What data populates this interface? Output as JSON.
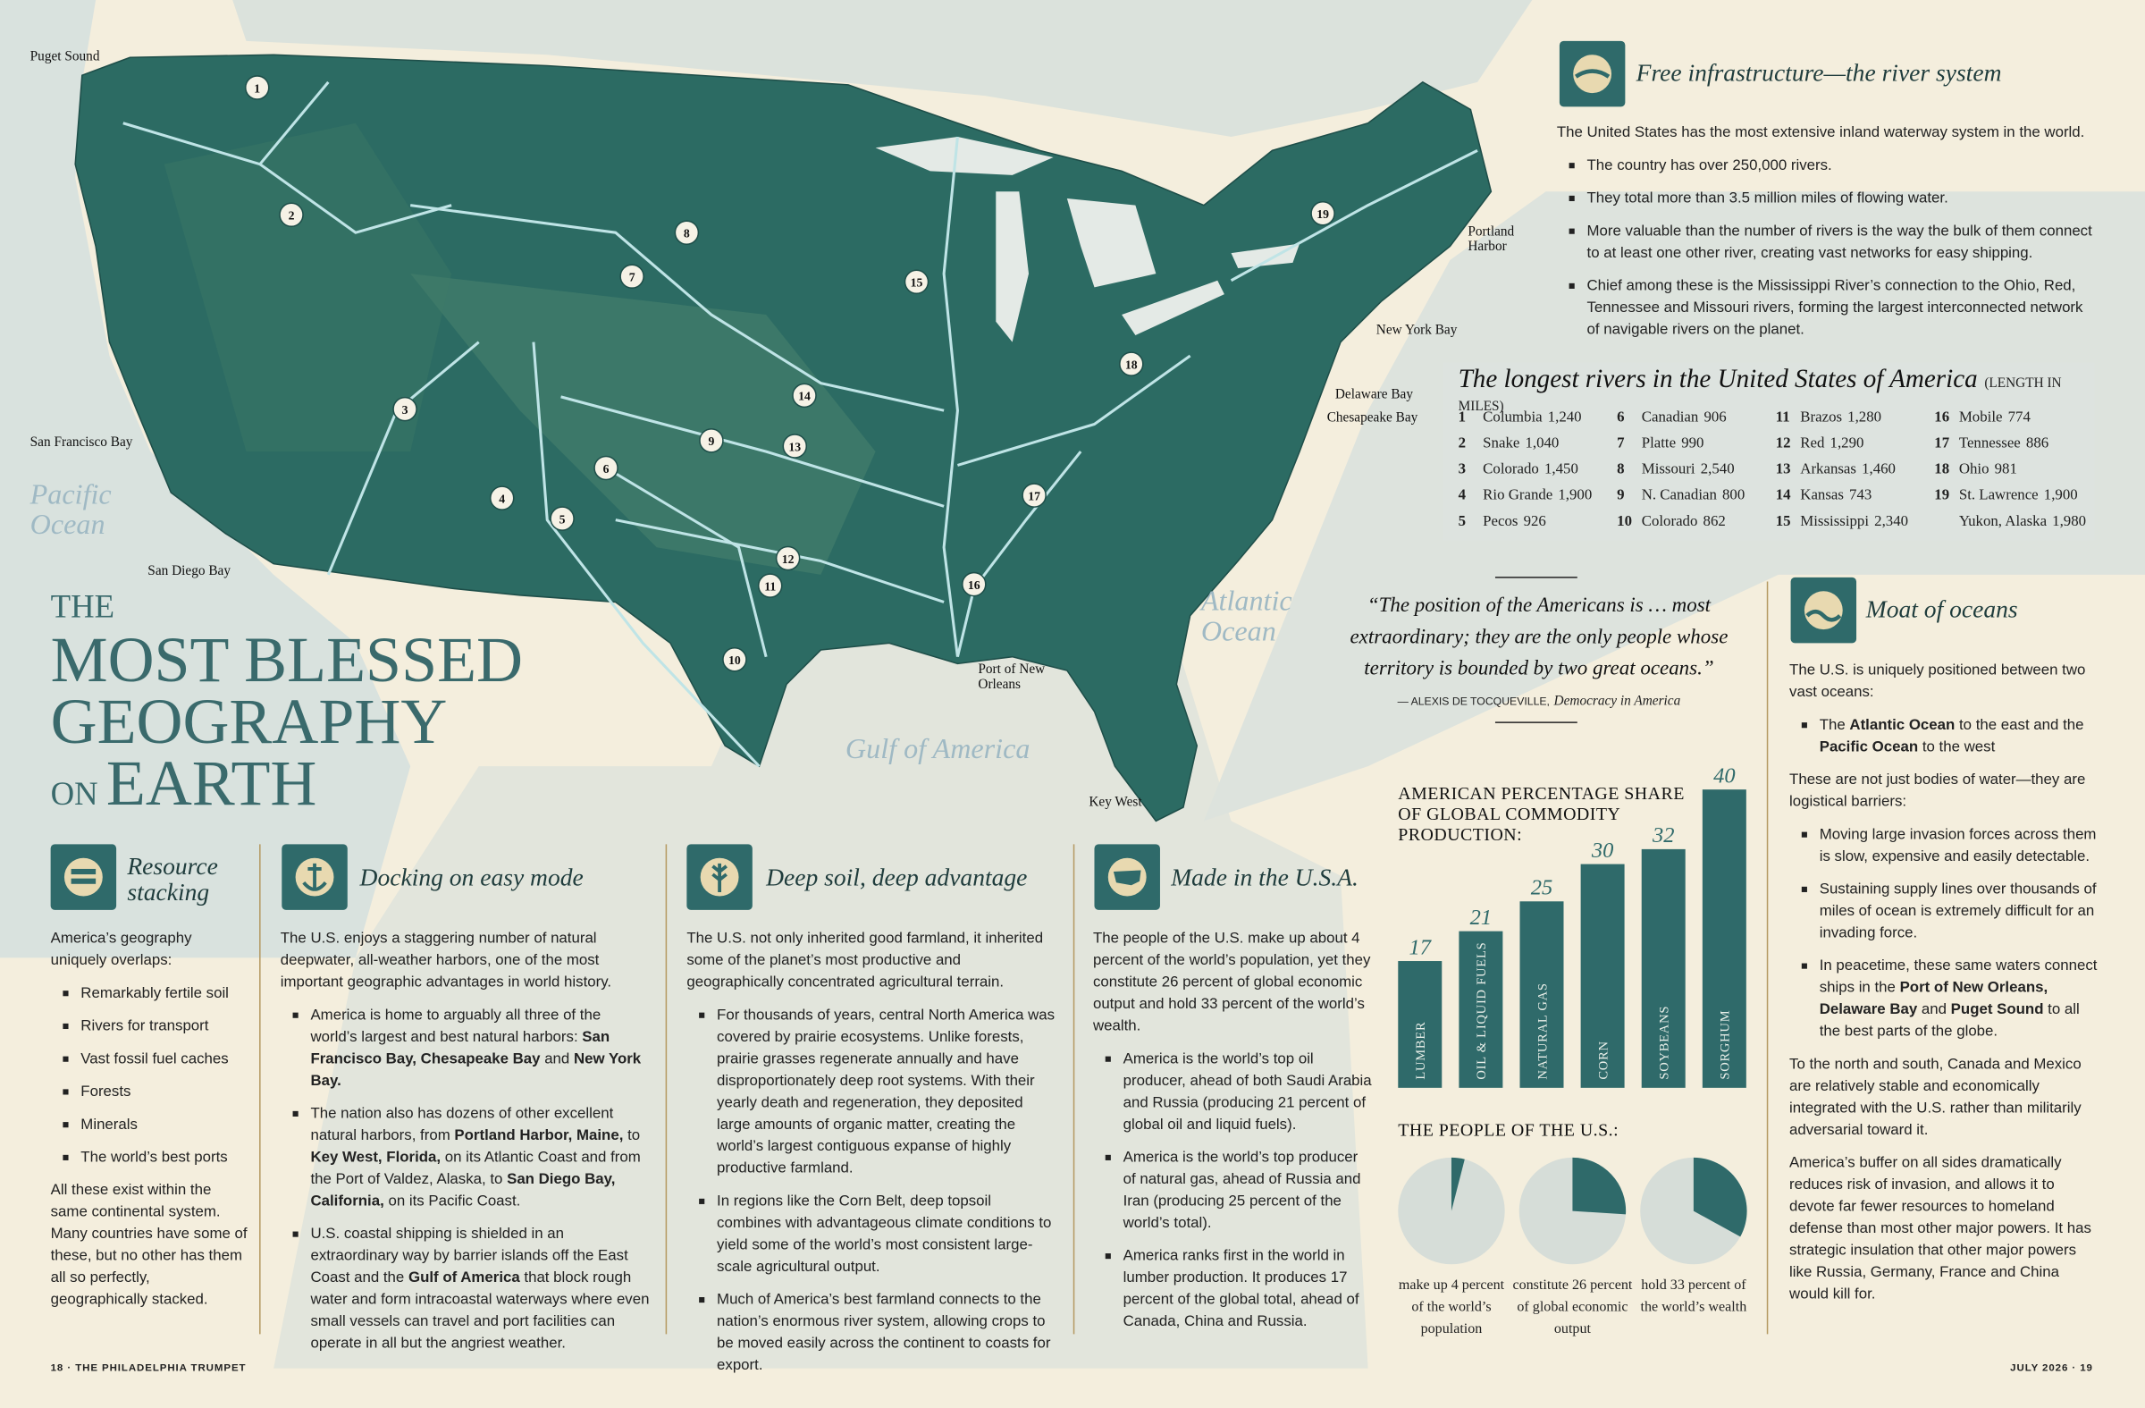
{
  "title": {
    "kicker": "THE",
    "line1": "MOST BLESSED",
    "line2": "GEOGRAPHY",
    "small": "ON",
    "line3": "EARTH"
  },
  "places": [
    "Puget Sound",
    "San Francisco Bay",
    "San Diego Bay",
    "Portland Harbor",
    "New York Bay",
    "Delaware Bay",
    "Chesapeake Bay",
    "Port of New Orleans",
    "Key West"
  ],
  "oceans": [
    "Pacific Ocean",
    "Atlantic Ocean",
    "Gulf of America"
  ],
  "river_system": {
    "title": "Free infrastructure—the river system",
    "body": [
      {
        "p": "The United States has the most extensive inland waterway system in the world."
      },
      {
        "ul": [
          "The country has over 250,000 rivers.",
          "They total more than 3.5 million miles of flowing water.",
          "More valuable than the number of rivers is the way the bulk of them connect to at least one other river, creating vast networks for easy shipping.",
          "Chief among these is the Mississippi River’s connection to the Ohio, Red, Tennessee and Missouri rivers, forming the largest interconnected network of navigable rivers on the planet."
        ]
      }
    ]
  },
  "longest_rivers": {
    "title": "The longest rivers in the United States of America",
    "unit": "(LENGTH IN MILES)",
    "rivers": [
      {
        "num": 1,
        "name": "Columbia",
        "length": "1,240"
      },
      {
        "num": 2,
        "name": "Snake",
        "length": "1,040"
      },
      {
        "num": 3,
        "name": "Colorado",
        "length": "1,450"
      },
      {
        "num": 4,
        "name": "Rio Grande",
        "length": "1,900"
      },
      {
        "num": 5,
        "name": "Pecos",
        "length": "926"
      },
      {
        "num": 6,
        "name": "Canadian",
        "length": "906"
      },
      {
        "num": 7,
        "name": "Platte",
        "length": "990"
      },
      {
        "num": 8,
        "name": "Missouri",
        "length": "2,540"
      },
      {
        "num": 9,
        "name": "N. Canadian",
        "length": "800"
      },
      {
        "num": 10,
        "name": "Colorado",
        "length": "862"
      },
      {
        "num": 11,
        "name": "Brazos",
        "length": "1,280"
      },
      {
        "num": 12,
        "name": "Red",
        "length": "1,290"
      },
      {
        "num": 13,
        "name": "Arkansas",
        "length": "1,460"
      },
      {
        "num": 14,
        "name": "Kansas",
        "length": "743"
      },
      {
        "num": 15,
        "name": "Mississippi",
        "length": "2,340"
      },
      {
        "num": 16,
        "name": "Mobile",
        "length": "774"
      },
      {
        "num": 17,
        "name": "Tennessee",
        "length": "886"
      },
      {
        "num": 18,
        "name": "Ohio",
        "length": "981"
      },
      {
        "num": 19,
        "name": "St. Lawrence",
        "length": "1,900"
      },
      {
        "name": "Yukon, Alaska",
        "length": "1,980"
      }
    ]
  },
  "quote": {
    "text": "“The position of the Americans is … most extraordinary; they are the only people whose territory is bounded by two great oceans.”",
    "author": "— ALEXIS DE TOCQUEVILLE,",
    "source": "Democracy in America"
  },
  "moat": {
    "title": "Moat of oceans",
    "body": [
      {
        "p": "The U.S. is uniquely positioned between two vast oceans:"
      },
      {
        "ul": [
          [
            "The ",
            "Atlantic Ocean",
            " to the east and the ",
            "Pacific Ocean",
            " to the west"
          ]
        ]
      },
      {
        "p": "These are not just bodies of water—they are logistical barriers:"
      },
      {
        "ul": [
          "Moving large invasion forces across them is slow, expensive and easily detectable.",
          "Sustaining supply lines over thousands of miles of ocean is extremely difficult for an invading force.",
          [
            "In peacetime, these same waters connect ships in the ",
            "Port of New Orleans, Delaware Bay",
            " and ",
            "Puget Sound",
            " to all the best parts of the globe."
          ]
        ]
      },
      {
        "p": "To the north and south, Canada and Mexico are relatively stable and economically integrated with the U.S. rather than militarily adversarial toward it."
      },
      {
        "p": "America’s buffer on all sides dramatically reduces risk of invasion, and allows it to devote far fewer resources to homeland defense than most other major powers. It has strategic insulation that other major powers like Russia, Germany, France and China would kill for."
      }
    ]
  },
  "columns": [
    {
      "title": "Resource stacking",
      "body": [
        {
          "p": "America’s geography uniquely overlaps:"
        },
        {
          "ul": [
            "Remarkably fertile soil",
            "Rivers for transport",
            "Vast fossil fuel caches",
            "Forests",
            "Minerals",
            "The world’s best ports"
          ]
        },
        {
          "p": "All these exist within the same continental system. Many countries have some of these, but no other has them all so perfectly, geographically stacked."
        }
      ]
    },
    {
      "title": "Docking on easy mode",
      "body": [
        {
          "p": "The U.S. enjoys a staggering number of natural deepwater, all-weather harbors, one of the most important geographic advantages in world history."
        },
        {
          "ul": [
            [
              "America is home to arguably all three of the world’s largest and best natural harbors: ",
              "San Francisco Bay, Chesapeake Bay",
              " and ",
              "New York Bay."
            ],
            [
              "The nation also has dozens of other excellent natural harbors, from ",
              "Portland Harbor, Maine,",
              " to ",
              "Key West, Florida,",
              " on its Atlantic Coast and from the Port of Valdez, Alaska, to ",
              "San Diego Bay, California,",
              " on its Pacific Coast."
            ],
            [
              "U.S. coastal shipping is shielded in an extraordinary way by barrier islands off the East Coast and the ",
              "Gulf of America",
              " that block rough water and form intracoastal waterways where even small vessels can travel and port facilities can operate in all but the angriest weather."
            ]
          ]
        }
      ]
    },
    {
      "title": "Deep soil, deep advantage",
      "body": [
        {
          "p": "The U.S. not only inherited good farmland, it inherited some of the planet’s most productive and geographically concentrated agricultural terrain."
        },
        {
          "ul": [
            "For thousands of years, central North America was covered by prairie ecosystems. Unlike forests, prairie grasses regenerate annually and have disproportionately deep root systems. With their yearly death and regeneration, they deposited large amounts of organic matter, creating the world’s largest contiguous expanse of highly productive farmland.",
            "In regions like the Corn Belt, deep topsoil combines with advantageous climate conditions to yield some of the world’s most consistent large-scale agricultural output.",
            "Much of America’s best farmland connects to the nation’s enormous river system, allowing crops to be moved easily across the continent to coasts for export."
          ]
        }
      ]
    },
    {
      "title": "Made in the U.S.A.",
      "body": [
        {
          "p": "The people of the U.S. make up about 4 percent of the world’s population, yet they constitute 26 percent of global economic output and hold 33 percent of the world’s wealth."
        },
        {
          "ul": [
            "America is the world’s top oil producer, ahead of both Saudi Arabia and Russia (producing 21 percent of global oil and liquid fuels).",
            "America is the world’s top producer of natural gas, ahead of Russia and Iran (producing 25 percent of the world’s total).",
            "America ranks first in the world in lumber production. It produces 17 percent of the global total, ahead of Canada, China and Russia."
          ]
        }
      ]
    }
  ],
  "chart_data": [
    {
      "type": "bar",
      "title": "AMERICAN PERCENTAGE SHARE OF GLOBAL COMMODITY PRODUCTION:",
      "categories": [
        "LUMBER",
        "OIL & LIQUID FUELS",
        "NATURAL GAS",
        "CORN",
        "SOYBEANS",
        "SORGHUM"
      ],
      "values": [
        17,
        21,
        25,
        30,
        32,
        40
      ],
      "color": "#2f6a6a"
    },
    {
      "type": "pie",
      "title": "THE PEOPLE OF THE U.S.:",
      "categories": [
        "make up 4 percent of the world’s population",
        "constitute 26 percent of global economic output",
        "hold 33 percent of the world’s wealth"
      ],
      "values": [
        4,
        26,
        33
      ],
      "color": "#2f6a6a",
      "rest_color": "#d6ddd8"
    }
  ],
  "footer": {
    "left": "18 · THE PHILADELPHIA TRUMPET",
    "right": "JULY 2026 · 19"
  }
}
